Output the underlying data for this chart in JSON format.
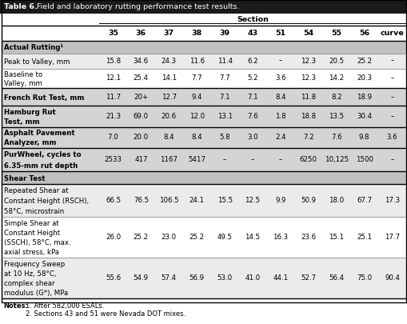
{
  "title_bold": "Table 6.",
  "title_rest": " Field and laboratory rutting performance test results.",
  "section_label": "Section",
  "col_headers": [
    "35",
    "36",
    "37",
    "38",
    "39",
    "43",
    "51",
    "54",
    "55",
    "56",
    "curve"
  ],
  "rows": [
    {
      "label": "Actual Rutting¹",
      "type": "section_header",
      "values": []
    },
    {
      "label": "Peak to Valley, mm",
      "type": "data",
      "values": [
        "15.8",
        "34.6",
        "24.3",
        "11.6",
        "11.4",
        "6.2",
        "–",
        "12.3",
        "20.5",
        "25.2",
        "–"
      ]
    },
    {
      "label": "Baseline to\nValley, mm",
      "type": "data",
      "values": [
        "12.1",
        "25.4",
        "14.1",
        "7.7",
        "7.7",
        "5.2",
        "3.6",
        "12.3",
        "14.2",
        "20.3",
        "–"
      ]
    },
    {
      "label": "French Rut Test, mm",
      "type": "bold_data",
      "values": [
        "11.7",
        "20+",
        "12.7",
        "9.4",
        "7.1",
        "7.1",
        "8.4",
        "11.8",
        "8.2",
        "18.9",
        "–"
      ]
    },
    {
      "label": "Hamburg Rut\nTest, mm",
      "type": "bold_data",
      "values": [
        "21.3",
        "69.0",
        "20.6",
        "12.0",
        "13.1",
        "7.6",
        "1.8",
        "18.8",
        "13.5",
        "30.4",
        "–"
      ]
    },
    {
      "label": "Asphalt Pavement\nAnalyzer, mm",
      "type": "bold_data",
      "values": [
        "7.0",
        "20.0",
        "8.4",
        "8.4",
        "5.8",
        "3.0",
        "2.4",
        "7.2",
        "7.6",
        "9.8",
        "3.6"
      ]
    },
    {
      "label": "PurWheel, cycles to\n6.35-mm rut depth",
      "type": "bold_data",
      "values": [
        "2533",
        "417",
        "1167",
        "5417",
        "–",
        "–",
        "–",
        "6250",
        "10,125",
        "1500",
        "–"
      ]
    },
    {
      "label": "Shear Test",
      "type": "section_header",
      "values": []
    },
    {
      "label": "Repeated Shear at\nConstant Height (RSCH),\n58°C, microstrain",
      "type": "data",
      "values": [
        "66.5",
        "76.5",
        "106.5",
        "24.1",
        "15.5",
        "12.5",
        "9.9",
        "50.9",
        "18.0",
        "67.7",
        "17.3"
      ]
    },
    {
      "label": "Simple Shear at\nConstant Height\n(SSCH), 58°C, max.\naxial stress, kPa",
      "type": "data",
      "values": [
        "26.0",
        "25.2",
        "23.0",
        "25.2",
        "49.5",
        "14.5",
        "16.3",
        "23.6",
        "15.1",
        "25.1",
        "17.7"
      ]
    },
    {
      "label": "Frequency Sweep\nat 10 Hz, 58°C,\ncomplex shear\nmodulus (G*), MPa",
      "type": "data",
      "values": [
        "55.6",
        "54.9",
        "57.4",
        "56.9",
        "53.0",
        "41.0",
        "44.1",
        "52.7",
        "56.4",
        "75.0",
        "90.4"
      ]
    }
  ],
  "note1": "1. After 582,000 ESALs.",
  "note2": "2. Sections 43 and 51 were Nevada DOT mixes.",
  "notes_label": "Notes:",
  "title_bg": "#1a1a1a",
  "title_fg": "#ffffff",
  "section_hdr_bg": "#c0c0c0",
  "bold_data_bg": "#d4d4d4",
  "data_bg_alt1": "#ebebeb",
  "data_bg_alt2": "#ffffff",
  "header_line_color": "#000000",
  "row_line_color": "#888888",
  "thick_line_color": "#000000"
}
